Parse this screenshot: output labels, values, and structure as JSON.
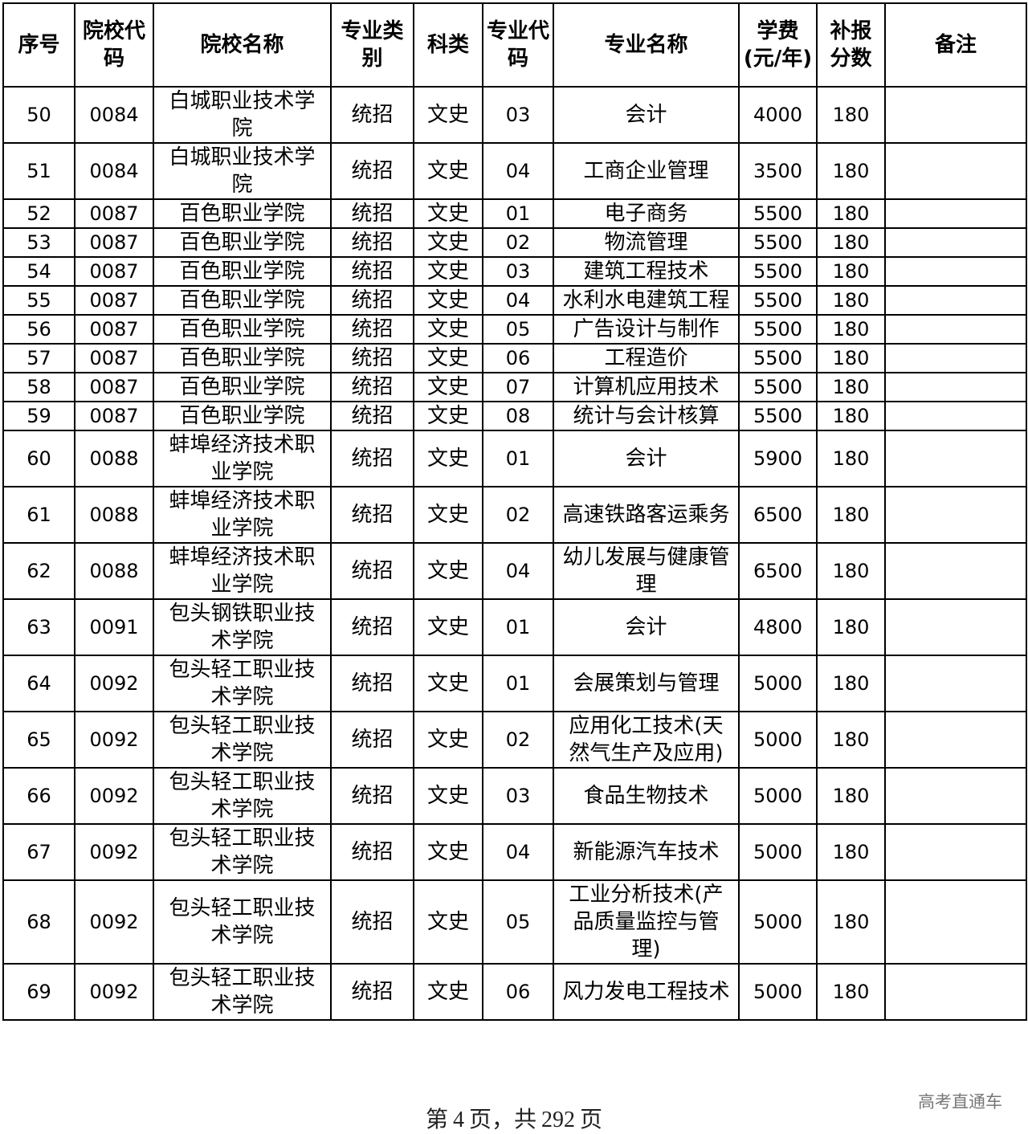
{
  "table": {
    "headers": [
      "序号",
      "院校代码",
      "院校名称",
      "专业类别",
      "科类",
      "专业代码",
      "专业名称",
      "学费(元/年)",
      "补报分数",
      "备注"
    ],
    "rows": [
      [
        "50",
        "0084",
        "白城职业技术学院",
        "统招",
        "文史",
        "03",
        "会计",
        "4000",
        "180",
        ""
      ],
      [
        "51",
        "0084",
        "白城职业技术学院",
        "统招",
        "文史",
        "04",
        "工商企业管理",
        "3500",
        "180",
        ""
      ],
      [
        "52",
        "0087",
        "百色职业学院",
        "统招",
        "文史",
        "01",
        "电子商务",
        "5500",
        "180",
        ""
      ],
      [
        "53",
        "0087",
        "百色职业学院",
        "统招",
        "文史",
        "02",
        "物流管理",
        "5500",
        "180",
        ""
      ],
      [
        "54",
        "0087",
        "百色职业学院",
        "统招",
        "文史",
        "03",
        "建筑工程技术",
        "5500",
        "180",
        ""
      ],
      [
        "55",
        "0087",
        "百色职业学院",
        "统招",
        "文史",
        "04",
        "水利水电建筑工程",
        "5500",
        "180",
        ""
      ],
      [
        "56",
        "0087",
        "百色职业学院",
        "统招",
        "文史",
        "05",
        "广告设计与制作",
        "5500",
        "180",
        ""
      ],
      [
        "57",
        "0087",
        "百色职业学院",
        "统招",
        "文史",
        "06",
        "工程造价",
        "5500",
        "180",
        ""
      ],
      [
        "58",
        "0087",
        "百色职业学院",
        "统招",
        "文史",
        "07",
        "计算机应用技术",
        "5500",
        "180",
        ""
      ],
      [
        "59",
        "0087",
        "百色职业学院",
        "统招",
        "文史",
        "08",
        "统计与会计核算",
        "5500",
        "180",
        ""
      ],
      [
        "60",
        "0088",
        "蚌埠经济技术职业学院",
        "统招",
        "文史",
        "01",
        "会计",
        "5900",
        "180",
        ""
      ],
      [
        "61",
        "0088",
        "蚌埠经济技术职业学院",
        "统招",
        "文史",
        "02",
        "高速铁路客运乘务",
        "6500",
        "180",
        ""
      ],
      [
        "62",
        "0088",
        "蚌埠经济技术职业学院",
        "统招",
        "文史",
        "04",
        "幼儿发展与健康管理",
        "6500",
        "180",
        ""
      ],
      [
        "63",
        "0091",
        "包头钢铁职业技术学院",
        "统招",
        "文史",
        "01",
        "会计",
        "4800",
        "180",
        ""
      ],
      [
        "64",
        "0092",
        "包头轻工职业技术学院",
        "统招",
        "文史",
        "01",
        "会展策划与管理",
        "5000",
        "180",
        ""
      ],
      [
        "65",
        "0092",
        "包头轻工职业技术学院",
        "统招",
        "文史",
        "02",
        "应用化工技术(天然气生产及应用)",
        "5000",
        "180",
        ""
      ],
      [
        "66",
        "0092",
        "包头轻工职业技术学院",
        "统招",
        "文史",
        "03",
        "食品生物技术",
        "5000",
        "180",
        ""
      ],
      [
        "67",
        "0092",
        "包头轻工职业技术学院",
        "统招",
        "文史",
        "04",
        "新能源汽车技术",
        "5000",
        "180",
        ""
      ],
      [
        "68",
        "0092",
        "包头轻工职业技术学院",
        "统招",
        "文史",
        "05",
        "工业分析技术(产品质量监控与管理)",
        "5000",
        "180",
        ""
      ],
      [
        "69",
        "0092",
        "包头轻工职业技术学院",
        "统招",
        "文史",
        "06",
        "风力发电工程技术",
        "5000",
        "180",
        ""
      ]
    ]
  },
  "footer": {
    "prefix": "第",
    "page": "4",
    "mid": "页，共",
    "total": "292",
    "suffix": "页"
  },
  "watermark": "高考直通车"
}
